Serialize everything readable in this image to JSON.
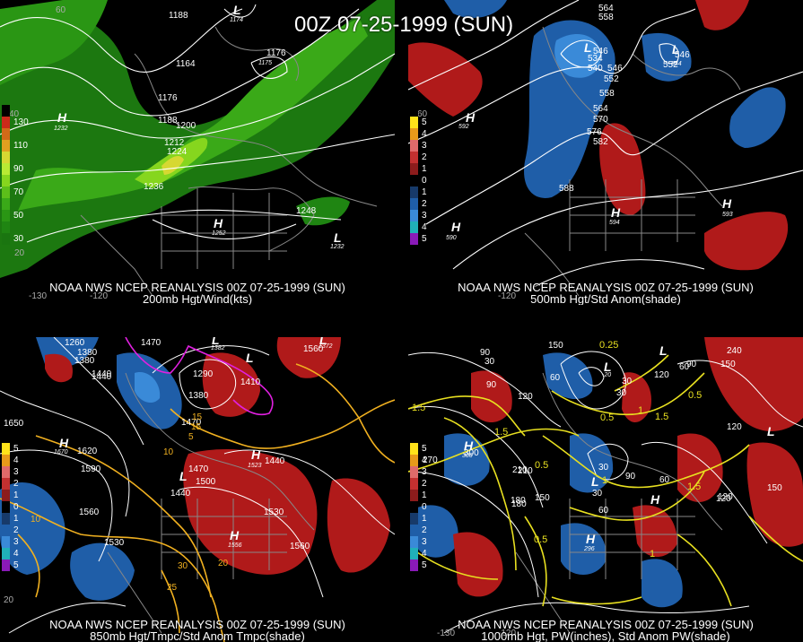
{
  "title": "00Z 07-25-1999 (SUN)",
  "panels": [
    {
      "line1": "NOAA NWS NCEP REANALYSIS 00Z 07-25-1999 (SUN)",
      "line2": "200mb Hgt/Wind(kts)",
      "legend": [
        {
          "label": "",
          "color": "#000000"
        },
        {
          "label": "130",
          "color": "#cc2a1a"
        },
        {
          "label": "",
          "color": "#d26a18"
        },
        {
          "label": "110",
          "color": "#e0a020"
        },
        {
          "label": "",
          "color": "#d6d832"
        },
        {
          "label": "90",
          "color": "#b8ea34"
        },
        {
          "label": "",
          "color": "#86d61e"
        },
        {
          "label": "70",
          "color": "#5cbf1a"
        },
        {
          "label": "",
          "color": "#3aa918"
        },
        {
          "label": "50",
          "color": "#2a9614"
        },
        {
          "label": "",
          "color": "#1f8512"
        },
        {
          "label": "30",
          "color": "#1a7510"
        }
      ],
      "contour_labels": [
        "1188",
        "1164",
        "1176",
        "1176",
        "1188",
        "1200",
        "1212",
        "1224",
        "1236",
        "1248",
        "1252",
        "1232",
        "1232"
      ],
      "center_labels": [
        "H",
        "H",
        "L",
        "L"
      ],
      "scale_labels": [
        "60",
        "40",
        "20",
        "-130",
        "-120"
      ],
      "small_labels": [
        "1174",
        "1175"
      ]
    },
    {
      "line1": "NOAA NWS NCEP REANALYSIS 00Z 07-25-1999 (SUN)",
      "line2": "500mb Hgt/Std Anom(shade)",
      "legend": [
        {
          "label": "",
          "color": "#000000"
        },
        {
          "label": "5",
          "color": "#ffe21a"
        },
        {
          "label": "4",
          "color": "#e89a1a"
        },
        {
          "label": "3",
          "color": "#e06a6a"
        },
        {
          "label": "2",
          "color": "#c33030"
        },
        {
          "label": "1",
          "color": "#8c1c1c"
        },
        {
          "label": "0",
          "color": "#000000"
        },
        {
          "label": "1",
          "color": "#173a6a"
        },
        {
          "label": "2",
          "color": "#1f5ea8"
        },
        {
          "label": "3",
          "color": "#3a8ad8"
        },
        {
          "label": "4",
          "color": "#20b0b8"
        },
        {
          "label": "5",
          "color": "#8a1ab8"
        }
      ],
      "contour_labels": [
        "564",
        "558",
        "546",
        "534",
        "540",
        "546",
        "552",
        "546",
        "552",
        "558",
        "564",
        "570",
        "576",
        "582",
        "588",
        "594",
        "592",
        "590",
        "593",
        "544"
      ],
      "center_labels": [
        "L",
        "L",
        "H",
        "H",
        "H",
        "H"
      ],
      "scale_labels": [
        "60",
        "-120"
      ],
      "small_labels": [
        "544",
        "534",
        "592",
        "594",
        "590",
        "593"
      ]
    },
    {
      "line1": "NOAA NWS NCEP REANALYSIS 00Z 07-25-1999 (SUN)",
      "line2": "850mb Hgt/Tmpc/Std Anom Tmpc(shade)",
      "legend": [
        {
          "label": "",
          "color": "#000000"
        },
        {
          "label": "5",
          "color": "#ffe21a"
        },
        {
          "label": "4",
          "color": "#e89a1a"
        },
        {
          "label": "3",
          "color": "#e06a6a"
        },
        {
          "label": "2",
          "color": "#c33030"
        },
        {
          "label": "1",
          "color": "#8c1c1c"
        },
        {
          "label": "0",
          "color": "#000000"
        },
        {
          "label": "1",
          "color": "#173a6a"
        },
        {
          "label": "2",
          "color": "#1f5ea8"
        },
        {
          "label": "3",
          "color": "#3a8ad8"
        },
        {
          "label": "4",
          "color": "#20b0b8"
        },
        {
          "label": "5",
          "color": "#8a1ab8"
        }
      ],
      "contour_labels": [
        "1470",
        "1380",
        "1440",
        "1290",
        "1380",
        "1410",
        "1470",
        "1560",
        "1620",
        "1590",
        "1470",
        "1500",
        "1440",
        "1560",
        "1530",
        "1530",
        "1560",
        "1650",
        "1440",
        "1440",
        "1380",
        "1260"
      ],
      "temp_labels": [
        "15",
        "10",
        "5",
        "10",
        "20",
        "25",
        "30",
        "15"
      ],
      "center_labels": [
        "H",
        "H",
        "H",
        "L",
        "L",
        "L",
        "L"
      ],
      "scale_labels": [
        "20"
      ],
      "small_labels": [
        "1670",
        "1382",
        "1556",
        "1523",
        "1372"
      ]
    },
    {
      "line1": "NOAA NWS NCEP REANALYSIS 00Z 07-25-1999 (SUN)",
      "line2": "1000mb Hgt, PW(inches), Std Anom PW(shade)",
      "legend": [
        {
          "label": "",
          "color": "#000000"
        },
        {
          "label": "5",
          "color": "#ffe21a"
        },
        {
          "label": "4",
          "color": "#e89a1a"
        },
        {
          "label": "3",
          "color": "#e06a6a"
        },
        {
          "label": "2",
          "color": "#c33030"
        },
        {
          "label": "1",
          "color": "#8c1c1c"
        },
        {
          "label": "0",
          "color": "#000000"
        },
        {
          "label": "1",
          "color": "#173a6a"
        },
        {
          "label": "2",
          "color": "#1f5ea8"
        },
        {
          "label": "3",
          "color": "#3a8ad8"
        },
        {
          "label": "4",
          "color": "#20b0b8"
        },
        {
          "label": "5",
          "color": "#8a1ab8"
        }
      ],
      "contour_labels": [
        "90",
        "30",
        "150",
        "60",
        "120",
        "180",
        "210",
        "240",
        "150",
        "90",
        "120",
        "60",
        "30",
        "90",
        "30",
        "30",
        "90",
        "60",
        "120",
        "150",
        "180",
        "210",
        "120",
        "150",
        "270",
        "300",
        "60",
        "30",
        "120"
      ],
      "pw_labels": [
        "0.25",
        "0.5",
        "1",
        "1.5",
        "1.5",
        "0.5",
        "1",
        "1.5",
        "0.5",
        "0.5",
        "1",
        "1.5"
      ],
      "center_labels": [
        "H",
        "H",
        "H",
        "L",
        "L",
        "L",
        "L"
      ],
      "scale_labels": [
        "-130",
        "-120"
      ],
      "small_labels": [
        "306",
        "296",
        "-20"
      ]
    }
  ],
  "colors": {
    "contour": "#ffffff",
    "temperature_contour": "#f0b020",
    "pw_contour": "#e8e020",
    "freezing_line": "#e020e0",
    "map_outline": "#888888",
    "positive_anomaly": "#b01a1a",
    "negative_anomaly": "#1f5ea8",
    "jet_wind": "#2a9614"
  }
}
